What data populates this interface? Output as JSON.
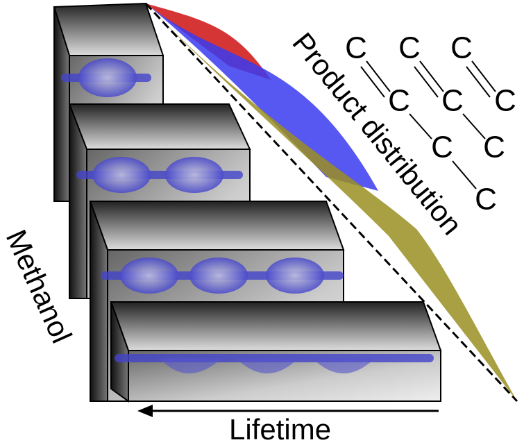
{
  "labels": {
    "product_distribution": "Product distribution",
    "methanol": "Methanol",
    "lifetime": "Lifetime"
  },
  "molecules": [
    {
      "atoms": [
        "C",
        "C",
        "C",
        "C"
      ]
    },
    {
      "atoms": [
        "C",
        "C",
        "C"
      ]
    },
    {
      "atoms": [
        "C",
        "C"
      ]
    }
  ]
}
